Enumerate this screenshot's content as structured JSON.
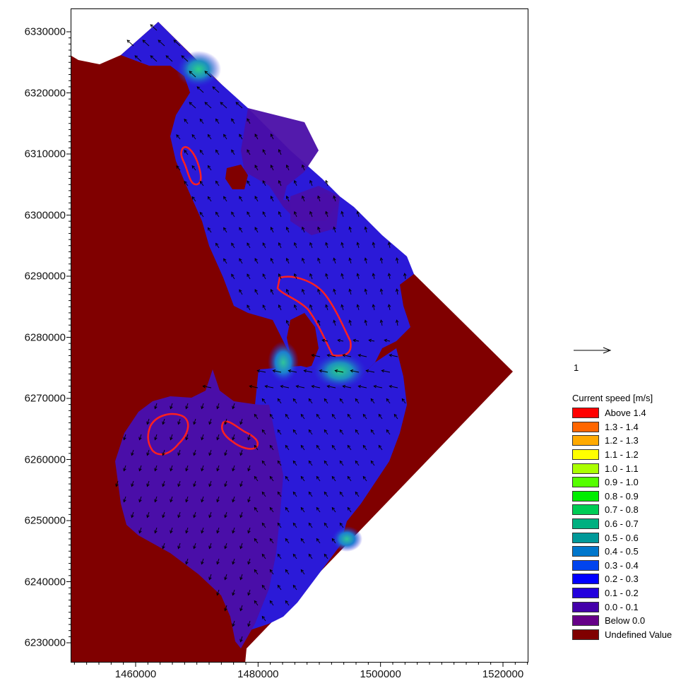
{
  "chart_data": {
    "type": "map",
    "x_ticks": [
      "1460000",
      "1480000",
      "1500000",
      "1520000"
    ],
    "y_ticks": [
      "6330000",
      "6320000",
      "6310000",
      "6300000",
      "6290000",
      "6280000",
      "6270000",
      "6260000",
      "6250000",
      "6240000",
      "6230000"
    ],
    "vector_scale_label": "1",
    "legend": {
      "title": "Current speed [m/s]",
      "items": [
        {
          "label": "Above 1.4",
          "color": "#ff0000"
        },
        {
          "label": "1.3 - 1.4",
          "color": "#ff6600"
        },
        {
          "label": "1.2 - 1.3",
          "color": "#ffaa00"
        },
        {
          "label": "1.1 - 1.2",
          "color": "#ffff00"
        },
        {
          "label": "1.0 - 1.1",
          "color": "#aaff00"
        },
        {
          "label": "0.9 - 1.0",
          "color": "#55ff00"
        },
        {
          "label": "0.8 - 0.9",
          "color": "#00ee00"
        },
        {
          "label": "0.7 - 0.8",
          "color": "#00cc55"
        },
        {
          "label": "0.6 - 0.7",
          "color": "#00b080"
        },
        {
          "label": "0.5 - 0.6",
          "color": "#009999"
        },
        {
          "label": "0.4 - 0.5",
          "color": "#0077cc"
        },
        {
          "label": "0.3 - 0.4",
          "color": "#0044ee"
        },
        {
          "label": "0.2 - 0.3",
          "color": "#0000ff"
        },
        {
          "label": "0.1 - 0.2",
          "color": "#2200dd"
        },
        {
          "label": "0.0 - 0.1",
          "color": "#4400aa"
        },
        {
          "label": "Below 0.0",
          "color": "#660088"
        },
        {
          "label": "Undefined Value",
          "color": "#800000"
        }
      ]
    },
    "colors": {
      "land": "#800000",
      "slow_water": "#4a0ea8",
      "channel_water": "#2a1ae0",
      "fast_jet": "#2aa58a",
      "contour": "#ff2020",
      "arrow": "#000000"
    }
  }
}
